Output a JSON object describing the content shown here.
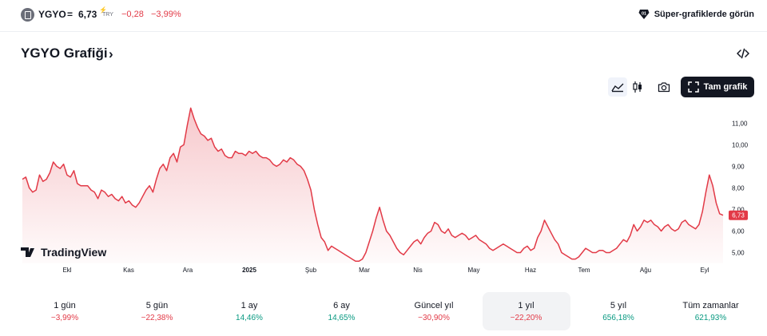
{
  "symbol": {
    "ticker": "YGYO",
    "equals": "=",
    "price": "6,73",
    "currency": "TRY",
    "change": "−0,28",
    "change_pct": "−3,99%"
  },
  "super_charts_link": "Süper-grafiklerde görün",
  "page_title": "YGYO Grafiği",
  "title_chevron": "›",
  "toolbar": {
    "full_chart_label": "Tam grafik"
  },
  "icons": {
    "logo": "ygyo-logo-icon",
    "super": "gem-icon",
    "embed": "embed-code-icon",
    "area": "area-chart-icon",
    "candles": "candlestick-icon",
    "camera": "camera-icon",
    "fullscreen": "fullscreen-icon"
  },
  "colors": {
    "line": "#e23a47",
    "negative": "#e23a47",
    "positive": "#089981",
    "brand_dark": "#131722"
  },
  "watermark": "TradingView",
  "chart_data": {
    "type": "area",
    "x_labels": [
      "Ekl",
      "Kas",
      "Ara",
      "2025",
      "Şub",
      "Mar",
      "Nis",
      "May",
      "Haz",
      "Tem",
      "Ağu",
      "Eyl"
    ],
    "y_ticks": [
      "11,00",
      "10,00",
      "9,00",
      "8,00",
      "7,00",
      "6,00",
      "5,00"
    ],
    "ylim": [
      4.5,
      11.9
    ],
    "last_value_label": "6,73",
    "series": [
      {
        "values": [
          8.4,
          8.5,
          8.0,
          7.8,
          7.9,
          8.6,
          8.3,
          8.4,
          8.7,
          9.2,
          9.0,
          8.9,
          9.1,
          8.6,
          8.5,
          8.8,
          8.2,
          8.1,
          8.1,
          8.1,
          7.9,
          7.8,
          7.5,
          7.9,
          7.8,
          7.6,
          7.7,
          7.5,
          7.4,
          7.6,
          7.3,
          7.4,
          7.2,
          7.1,
          7.3,
          7.6,
          7.9,
          8.1,
          7.8,
          8.4,
          8.9,
          9.1,
          8.8,
          9.4,
          9.6,
          9.2,
          9.9,
          10.0,
          10.9,
          11.7,
          11.2,
          10.8,
          10.5,
          10.4,
          10.2,
          10.3,
          9.9,
          9.7,
          9.8,
          9.5,
          9.4,
          9.4,
          9.7,
          9.6,
          9.6,
          9.5,
          9.7,
          9.6,
          9.7,
          9.5,
          9.4,
          9.4,
          9.3,
          9.1,
          9.0,
          9.1,
          9.3,
          9.2,
          9.4,
          9.3,
          9.1,
          9.0,
          8.8,
          8.4,
          7.9,
          7.0,
          6.3,
          5.7,
          5.5,
          5.1,
          5.3,
          5.2,
          5.1,
          5.0,
          4.9,
          4.8,
          4.7,
          4.6,
          4.6,
          4.7,
          5.0,
          5.5,
          6.0,
          6.6,
          7.1,
          6.5,
          6.0,
          5.8,
          5.5,
          5.2,
          5.0,
          4.9,
          5.1,
          5.3,
          5.5,
          5.6,
          5.4,
          5.7,
          5.9,
          6.0,
          6.4,
          6.3,
          6.0,
          5.9,
          6.1,
          5.8,
          5.7,
          5.8,
          5.9,
          5.8,
          5.6,
          5.7,
          5.8,
          5.6,
          5.5,
          5.4,
          5.2,
          5.1,
          5.2,
          5.3,
          5.4,
          5.3,
          5.2,
          5.1,
          5.0,
          5.0,
          5.2,
          5.3,
          5.1,
          5.2,
          5.7,
          6.0,
          6.5,
          6.2,
          5.9,
          5.6,
          5.4,
          5.0,
          4.9,
          4.8,
          4.7,
          4.7,
          4.8,
          5.0,
          5.2,
          5.1,
          5.0,
          5.0,
          5.1,
          5.1,
          5.0,
          5.0,
          5.1,
          5.2,
          5.4,
          5.6,
          5.5,
          5.8,
          6.3,
          6.0,
          6.2,
          6.5,
          6.4,
          6.5,
          6.3,
          6.2,
          6.0,
          6.2,
          6.3,
          6.1,
          6.0,
          6.1,
          6.4,
          6.5,
          6.3,
          6.2,
          6.1,
          6.3,
          6.9,
          7.8,
          8.6,
          8.1,
          7.3,
          6.8,
          6.73
        ]
      }
    ]
  },
  "periods": [
    {
      "label": "1 gün",
      "value": "−3,99%"
    },
    {
      "label": "5 gün",
      "value": "−22,38%"
    },
    {
      "label": "1 ay",
      "value": "14,46%"
    },
    {
      "label": "6 ay",
      "value": "14,65%"
    },
    {
      "label": "Güncel yıl",
      "value": "−30,90%"
    },
    {
      "label": "1 yıl",
      "value": "−22,20%"
    },
    {
      "label": "5 yıl",
      "value": "656,18%"
    },
    {
      "label": "Tüm zamanlar",
      "value": "621,93%"
    }
  ]
}
